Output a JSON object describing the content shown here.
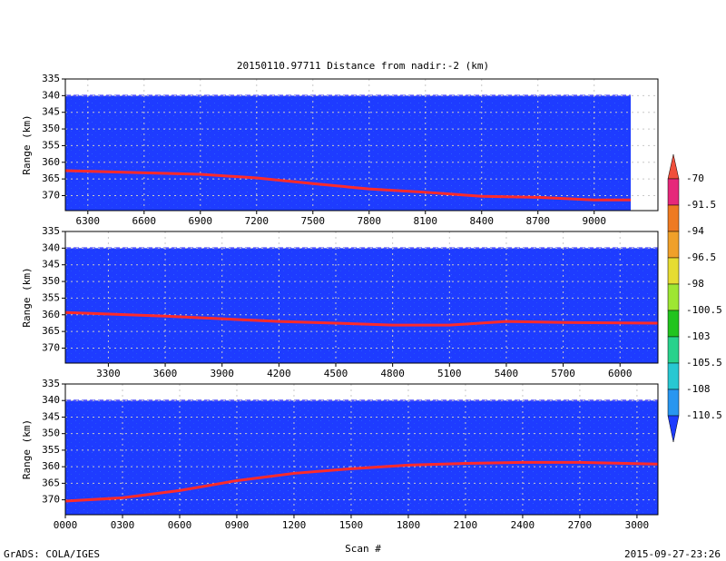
{
  "title": "20150110.97711    Distance from nadir:-2 (km)",
  "xlabel": "Scan #",
  "ylabel": "Range (km)",
  "footer_left": "GrADS: COLA/IGES",
  "footer_right": "2015-09-27-23:26",
  "colorbar": {
    "levels": [
      -70,
      -91.5,
      -94,
      -96.5,
      -98,
      -100.5,
      -103,
      -105.5,
      -108,
      -110.5
    ],
    "colors": [
      "#f0503c",
      "#e6287a",
      "#ee7a22",
      "#f0a02a",
      "#e6dc32",
      "#9ee632",
      "#22c41e",
      "#28d28c",
      "#28c8d2",
      "#2896f0",
      "#1e3cff"
    ]
  },
  "chart_data": [
    {
      "type": "line",
      "xlim": [
        6180,
        9340
      ],
      "ylim": [
        335,
        374.5
      ],
      "y_inverted": true,
      "grid": true,
      "xticks": [
        6300,
        6600,
        6900,
        7200,
        7500,
        7800,
        8100,
        8400,
        8700,
        9000
      ],
      "yticks": [
        335,
        340,
        345,
        350,
        355,
        360,
        365,
        370
      ],
      "x": [
        6180,
        6900,
        7200,
        7500,
        7800,
        8100,
        8400,
        8700,
        9000,
        9195
      ],
      "series": [
        {
          "color": "#ff2a2a",
          "values": [
            362.5,
            363.6,
            364.7,
            366.4,
            368,
            369,
            370.2,
            370.5,
            371.3,
            371.3
          ]
        }
      ]
    },
    {
      "type": "line",
      "xlim": [
        3073,
        6200
      ],
      "ylim": [
        335,
        374.5
      ],
      "y_inverted": true,
      "grid": true,
      "xticks": [
        3300,
        3600,
        3900,
        4200,
        4500,
        4800,
        5100,
        5400,
        5700,
        6000
      ],
      "yticks": [
        335,
        340,
        345,
        350,
        355,
        360,
        365,
        370
      ],
      "x": [
        3073,
        3600,
        4200,
        4500,
        4800,
        5100,
        5400,
        5700,
        6200
      ],
      "series": [
        {
          "color": "#ff2a2a",
          "values": [
            359.3,
            360.4,
            362,
            362.5,
            363.1,
            363.1,
            362,
            362.3,
            362.5
          ]
        }
      ]
    },
    {
      "type": "line",
      "xlim": [
        0,
        3110
      ],
      "ylim": [
        335,
        374.5
      ],
      "y_inverted": true,
      "grid": true,
      "xticks": [
        {
          "value": 0,
          "label": "0000"
        },
        {
          "value": 300,
          "label": "0300"
        },
        {
          "value": 600,
          "label": "0600"
        },
        {
          "value": 900,
          "label": "0900"
        },
        1200,
        1500,
        1800,
        2100,
        2400,
        2700,
        3000
      ],
      "yticks": [
        335,
        340,
        345,
        350,
        355,
        360,
        365,
        370
      ],
      "x": [
        0,
        300,
        600,
        900,
        1200,
        1500,
        1800,
        2100,
        2400,
        2700,
        3110
      ],
      "series": [
        {
          "color": "#ff2a2a",
          "values": [
            370.4,
            369.4,
            367.2,
            364.2,
            362,
            360.6,
            359.5,
            359,
            358.7,
            358.7,
            359.2
          ]
        }
      ]
    }
  ]
}
